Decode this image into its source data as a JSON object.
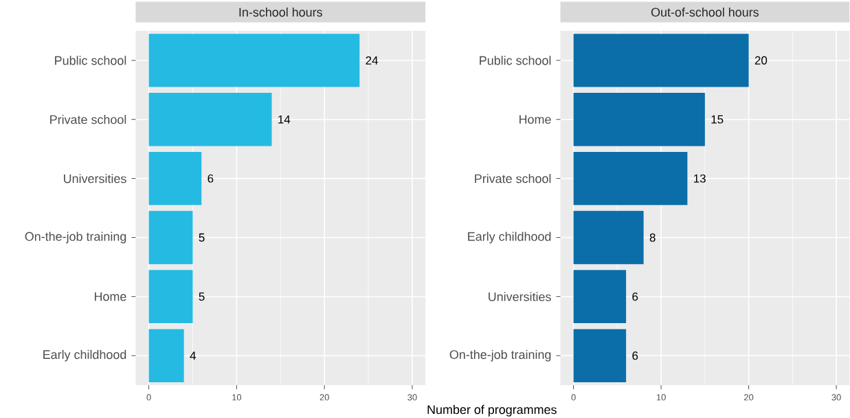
{
  "chart_data": [
    {
      "type": "bar",
      "orientation": "horizontal",
      "title": "In-school hours",
      "xlabel": "Number of programmes",
      "categories": [
        "Public school",
        "Private school",
        "Universities",
        "On-the-job training",
        "Home",
        "Early childhood"
      ],
      "values": [
        24,
        14,
        6,
        5,
        5,
        4
      ],
      "color": "#25bae2",
      "xlim": [
        -1.5,
        31.5
      ],
      "xticks": [
        0,
        10,
        20,
        30
      ],
      "grid": true,
      "data_labels": true
    },
    {
      "type": "bar",
      "orientation": "horizontal",
      "title": "Out-of-school hours",
      "categories": [
        "Public school",
        "Home",
        "Private school",
        "Early childhood",
        "Universities",
        "On-the-job training"
      ],
      "values": [
        20,
        15,
        13,
        8,
        6,
        6
      ],
      "color": "#0b6ea8",
      "xlim": [
        -1.5,
        31.5
      ],
      "xticks": [
        0,
        10,
        20,
        30
      ],
      "grid": true,
      "data_labels": true
    }
  ]
}
